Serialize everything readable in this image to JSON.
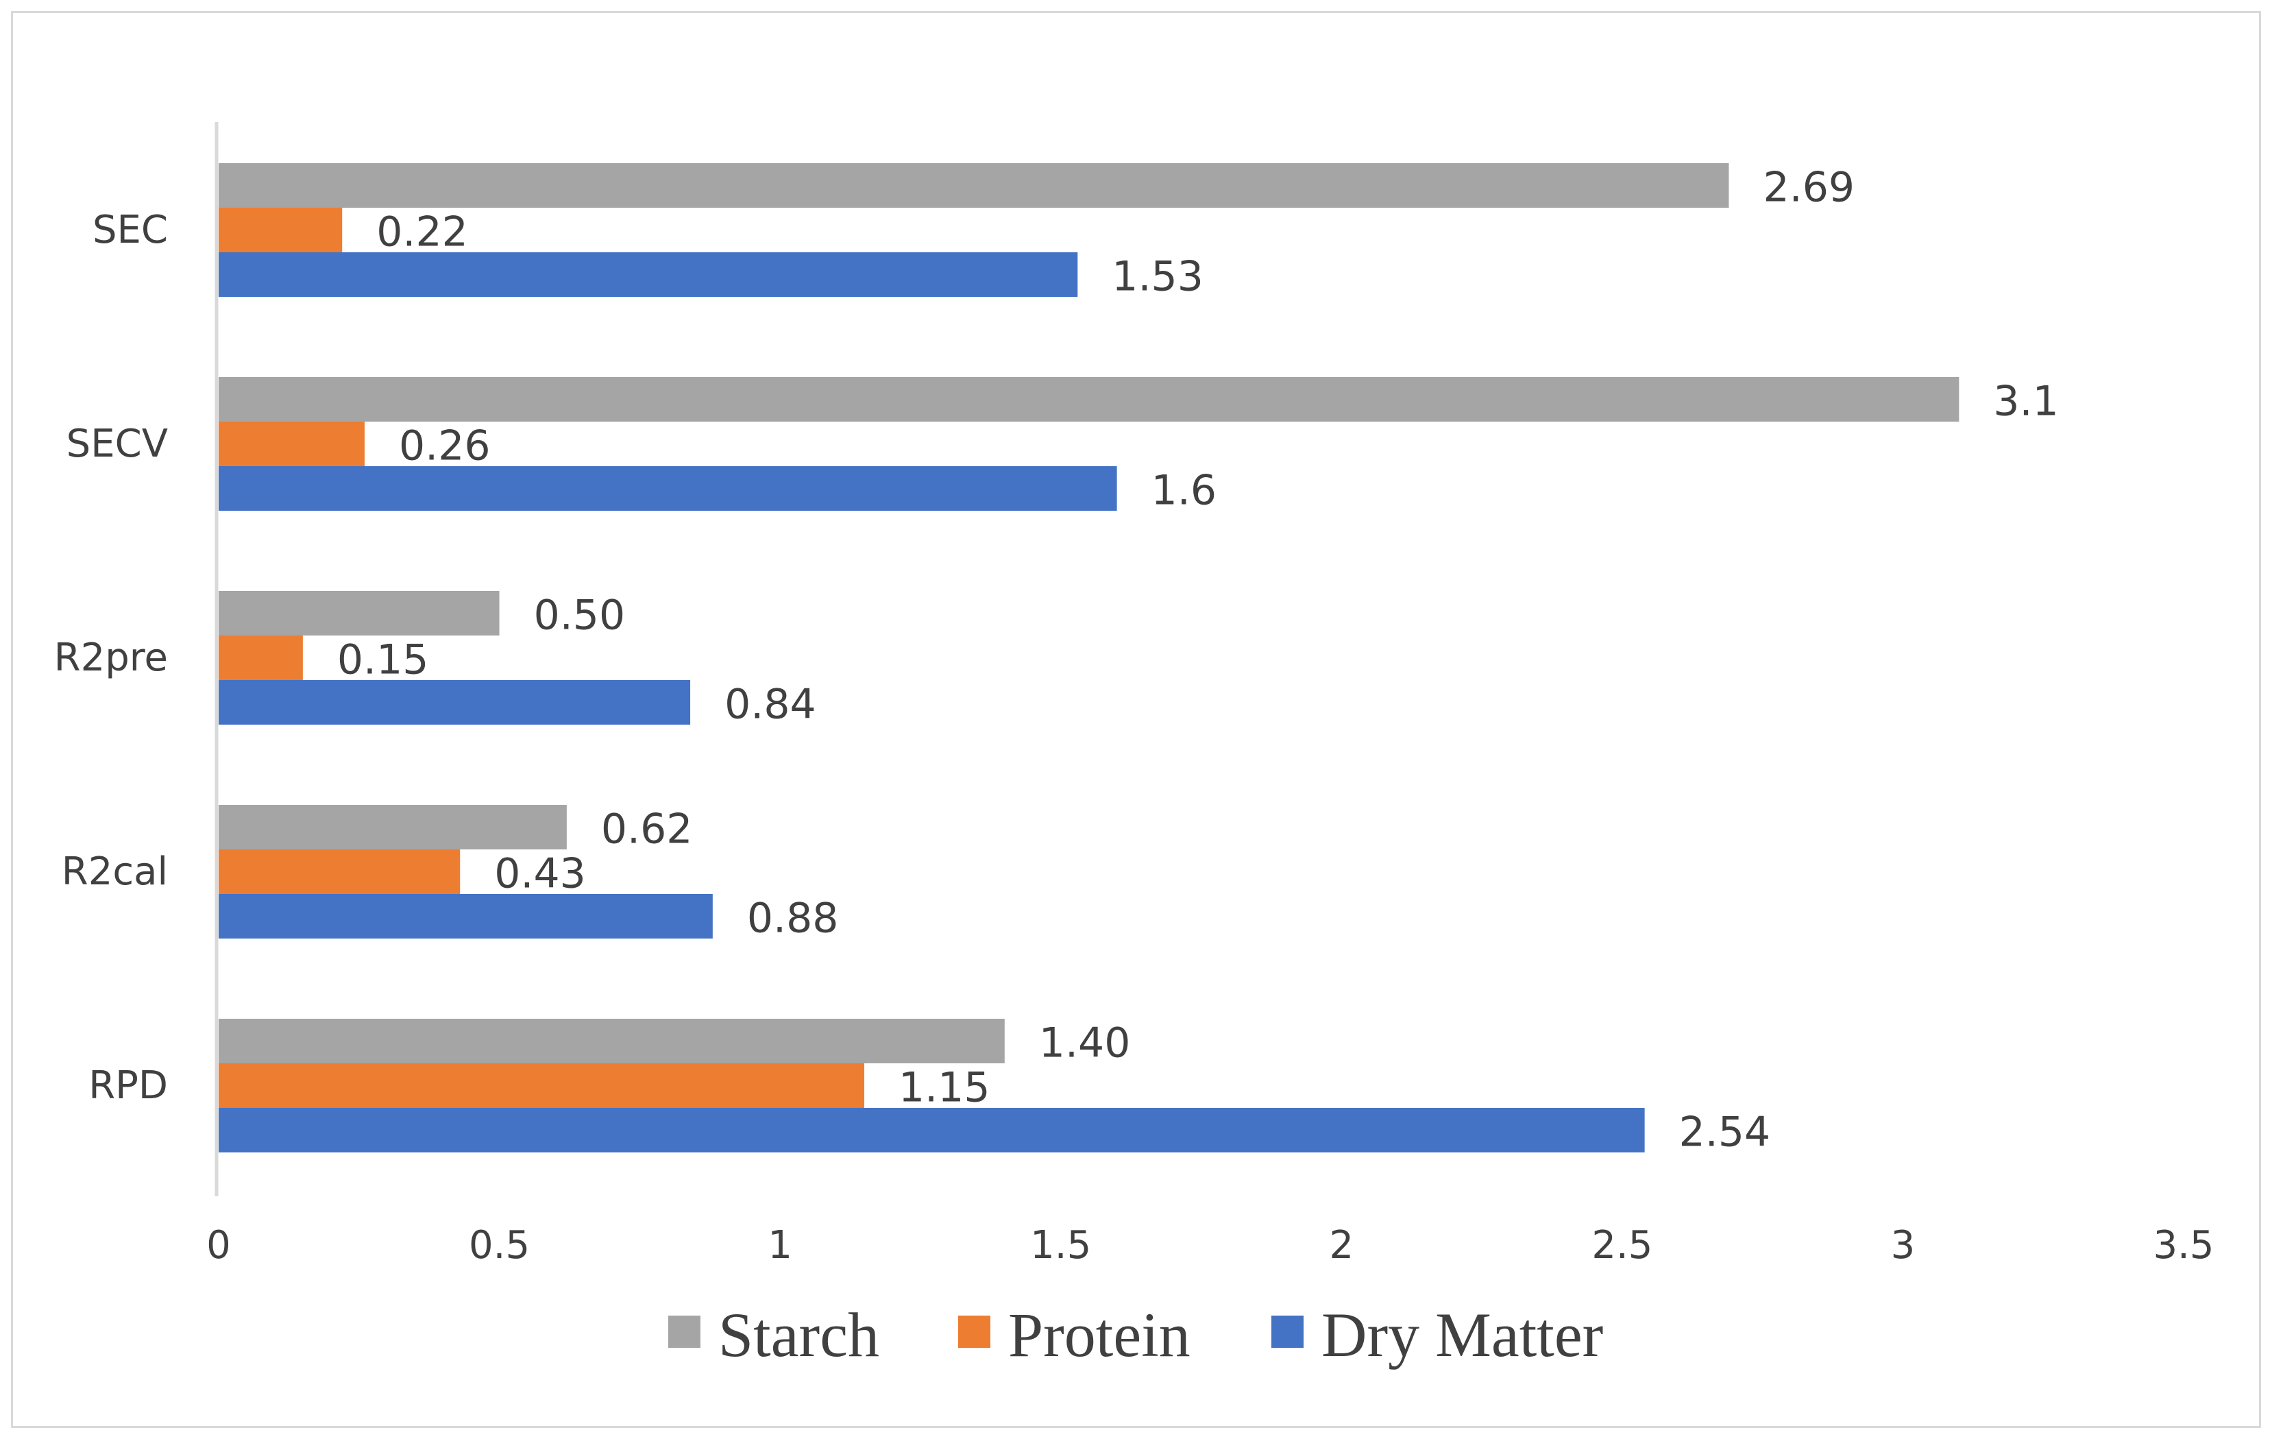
{
  "chart_data": {
    "type": "bar",
    "orientation": "horizontal",
    "categories": [
      "SEC",
      "SECV",
      "R2pre",
      "R2cal",
      "RPD"
    ],
    "series": [
      {
        "name": "Starch",
        "color": "#a5a5a5",
        "values": [
          2.69,
          3.1,
          0.5,
          0.62,
          1.4
        ],
        "labels": [
          "2.69",
          "3.1",
          "0.50",
          "0.62",
          "1.40"
        ]
      },
      {
        "name": "Protein",
        "color": "#ed7d31",
        "values": [
          0.22,
          0.26,
          0.15,
          0.43,
          1.15
        ],
        "labels": [
          "0.22",
          "0.26",
          "0.15",
          "0.43",
          "1.15"
        ]
      },
      {
        "name": "Dry Matter",
        "color": "#4472c4",
        "values": [
          1.53,
          1.6,
          0.84,
          0.88,
          2.54
        ],
        "labels": [
          "1.53",
          "1.6",
          "0.84",
          "0.88",
          "2.54"
        ]
      }
    ],
    "xlim": [
      0,
      3.5
    ],
    "xticks": [
      "0",
      "0.5",
      "1",
      "1.5",
      "2",
      "2.5",
      "3",
      "3.5"
    ],
    "xlabel": "",
    "ylabel": "",
    "title": "",
    "grid": false,
    "legend_position": "bottom"
  }
}
